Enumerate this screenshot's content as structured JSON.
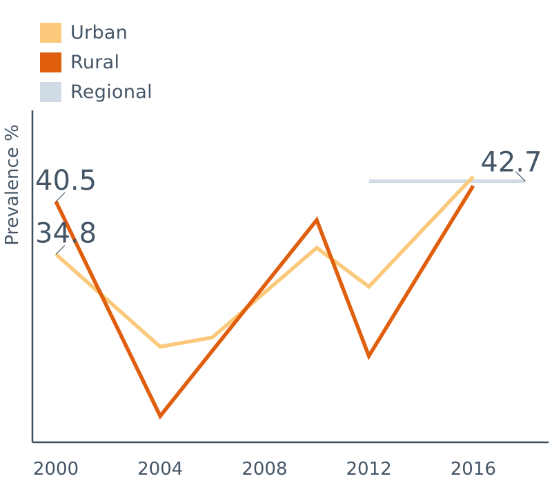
{
  "chart_data": {
    "type": "line",
    "ylabel": "Prevalence %",
    "xlabel": "",
    "x_ticks": [
      "2000",
      "2004",
      "2008",
      "2012",
      "2016"
    ],
    "xlim": [
      2000,
      2019.5
    ],
    "ylim": [
      14,
      51
    ],
    "series": [
      {
        "name": "Urban",
        "color": "#fbc97c",
        "x": [
          2000,
          2004,
          2006,
          2010,
          2012,
          2016
        ],
        "y": [
          34.8,
          24.8,
          25.8,
          35.5,
          31.3,
          43.2
        ]
      },
      {
        "name": "Rural",
        "color": "#df5f0e",
        "x": [
          2000,
          2004,
          2010,
          2012,
          2016
        ],
        "y": [
          40.5,
          17.3,
          38.5,
          23.8,
          42.2
        ]
      },
      {
        "name": "Regional",
        "color": "#d1dbe6",
        "x": [
          2012,
          2018
        ],
        "y": [
          42.7,
          42.7
        ]
      }
    ],
    "annotations": [
      {
        "text": "40.5",
        "series": "Rural",
        "x": 2000,
        "y": 40.5
      },
      {
        "text": "34.8",
        "series": "Urban",
        "x": 2000,
        "y": 34.8
      },
      {
        "text": "42.7",
        "series": "Regional",
        "x": 2018,
        "y": 42.7
      }
    ],
    "grid": false,
    "legend_position": "top-left",
    "axis_color": "#3d4f5c",
    "text_color": "#445566"
  }
}
